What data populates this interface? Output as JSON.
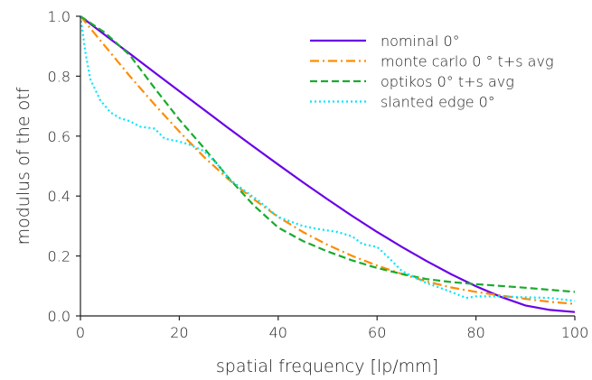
{
  "chart_data": {
    "type": "line",
    "title": "",
    "xlabel": "spatial frequency [lp/mm]",
    "ylabel": "modulus of the otf",
    "xlim": [
      0,
      100
    ],
    "ylim": [
      0.0,
      1.0
    ],
    "xticks": [
      "0",
      "20",
      "40",
      "60",
      "80",
      "100"
    ],
    "yticks": [
      "0.0",
      "0.2",
      "0.4",
      "0.6",
      "0.8",
      "1.0"
    ],
    "grid": false,
    "legend_position": "top-right",
    "series": [
      {
        "name": "nominal 0°",
        "color": "#6a00e8",
        "style": "solid",
        "x": [
          0,
          5,
          10,
          15,
          20,
          25,
          30,
          35,
          40,
          45,
          50,
          55,
          60,
          65,
          70,
          75,
          80,
          85,
          90,
          95,
          100
        ],
        "y": [
          1.0,
          0.937,
          0.875,
          0.812,
          0.75,
          0.688,
          0.626,
          0.565,
          0.505,
          0.446,
          0.389,
          0.333,
          0.28,
          0.23,
          0.183,
          0.139,
          0.099,
          0.064,
          0.035,
          0.02,
          0.013
        ]
      },
      {
        "name": "monte carlo 0 ° t+s avg",
        "color": "#ff8c00",
        "style": "dashdot",
        "x": [
          0,
          5,
          10,
          15,
          20,
          25,
          30,
          35,
          40,
          45,
          50,
          55,
          60,
          65,
          70,
          75,
          80,
          85,
          90,
          95,
          100
        ],
        "y": [
          1.0,
          0.9,
          0.8,
          0.705,
          0.615,
          0.53,
          0.455,
          0.39,
          0.33,
          0.28,
          0.237,
          0.2,
          0.168,
          0.14,
          0.115,
          0.095,
          0.08,
          0.068,
          0.057,
          0.047,
          0.04
        ]
      },
      {
        "name": "optikos 0° t+s avg",
        "color": "#1aab2e",
        "style": "dashed",
        "x": [
          0,
          5,
          10,
          15,
          20,
          25,
          30,
          35,
          40,
          45,
          50,
          55,
          60,
          65,
          70,
          75,
          80,
          85,
          90,
          95,
          100
        ],
        "y": [
          1.0,
          0.945,
          0.87,
          0.76,
          0.655,
          0.56,
          0.46,
          0.37,
          0.295,
          0.25,
          0.215,
          0.185,
          0.16,
          0.14,
          0.123,
          0.113,
          0.106,
          0.1,
          0.094,
          0.087,
          0.08
        ]
      },
      {
        "name": "slanted edge 0°",
        "color": "#00e5ff",
        "style": "dotted",
        "x": [
          0,
          1,
          2,
          4,
          6,
          8,
          10,
          12,
          15,
          17,
          20,
          22,
          25,
          28,
          30,
          33,
          36,
          40,
          42,
          45,
          48,
          52,
          55,
          57,
          60,
          62,
          65,
          70,
          75,
          78,
          80,
          85,
          90,
          95,
          100
        ],
        "y": [
          1.0,
          0.88,
          0.79,
          0.72,
          0.68,
          0.66,
          0.65,
          0.632,
          0.625,
          0.592,
          0.582,
          0.572,
          0.55,
          0.5,
          0.458,
          0.42,
          0.385,
          0.33,
          0.318,
          0.3,
          0.29,
          0.28,
          0.265,
          0.24,
          0.23,
          0.2,
          0.15,
          0.11,
          0.08,
          0.06,
          0.065,
          0.065,
          0.062,
          0.06,
          0.05
        ]
      }
    ]
  }
}
